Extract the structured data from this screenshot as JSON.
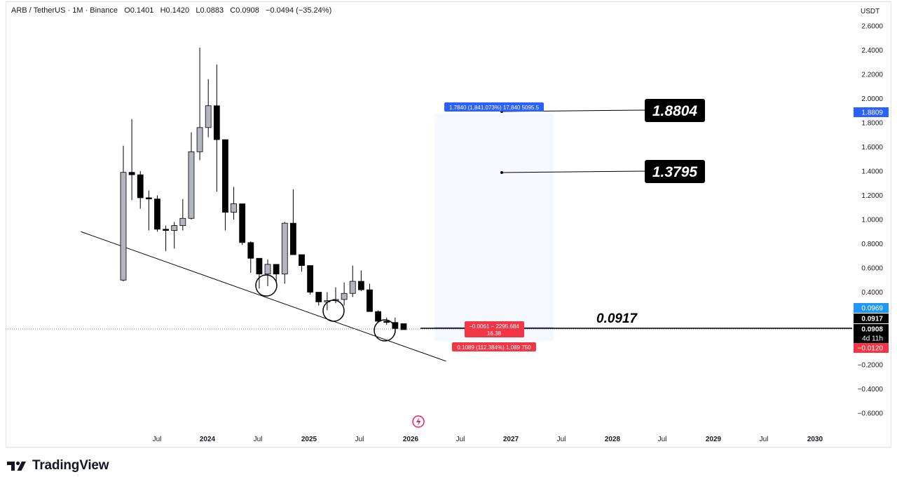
{
  "header": {
    "symbol": "ARB / TetherUS · 1M · Binance",
    "open": "O0.1401",
    "high": "H0.1420",
    "low": "L0.0883",
    "close": "C0.0908",
    "change": "−0.0494 (−35.24%)"
  },
  "price_axis": {
    "unit": "USDT",
    "ticks": [
      "2.6000",
      "2.4000",
      "2.2000",
      "2.0000",
      "1.8000",
      "1.6000",
      "1.4000",
      "1.2000",
      "1.0000",
      "0.8000",
      "0.6000",
      "0.4000",
      "0.2000",
      "−0.2000",
      "−0.4000",
      "−0.6000"
    ],
    "tick_values": [
      2.6,
      2.4,
      2.2,
      2.0,
      1.8,
      1.6,
      1.4,
      1.2,
      1.0,
      0.8,
      0.6,
      0.4,
      0.2,
      -0.2,
      -0.4,
      -0.6
    ],
    "badges": [
      {
        "text": "1.8809",
        "value": 1.8809,
        "color": "#2962ff"
      },
      {
        "text": "0.0969",
        "value": 0.0969,
        "color": "#2196f3"
      },
      {
        "text": "0.0917",
        "value": 0.0917,
        "color": "#000000"
      },
      {
        "text": "0.0908",
        "value": 0.0908,
        "color": "#000000"
      },
      {
        "text": "4d 11h",
        "value": 0.0908,
        "color": "#000000"
      },
      {
        "text": "−0.0120",
        "value": -0.012,
        "color": "#f23645"
      }
    ]
  },
  "time_axis": {
    "labels": [
      "Jul",
      "2024",
      "Jul",
      "2025",
      "Jul",
      "2026",
      "Jul",
      "2027",
      "Jul",
      "2028",
      "Jul",
      "2029",
      "Jul",
      "2030"
    ],
    "bold": [
      false,
      true,
      false,
      true,
      false,
      true,
      false,
      true,
      false,
      true,
      false,
      true,
      false,
      true
    ]
  },
  "annotations": {
    "target_high": "1.8804",
    "target_mid": "1.3795",
    "current_level": "0.0917",
    "measure_up": "1.7840 (1,841.073%) 17,840 5095.5",
    "measure_mid_1": "−0.0061 − 2295.684",
    "measure_mid_2": "16.38",
    "measure_down": "0.1089 (112.384%) 1,089 750"
  },
  "chart_data": {
    "type": "candlestick",
    "title": "ARB / TetherUS · 1M · Binance",
    "ylabel": "USDT",
    "ylim": [
      -0.7,
      2.7
    ],
    "candles": [
      {
        "open": 0.5,
        "high": 1.61,
        "low": 0.49,
        "close": 1.39
      },
      {
        "open": 1.39,
        "high": 1.83,
        "low": 1.16,
        "close": 1.37
      },
      {
        "open": 1.37,
        "high": 1.4,
        "low": 1.09,
        "close": 1.18
      },
      {
        "open": 1.18,
        "high": 1.24,
        "low": 0.91,
        "close": 1.17
      },
      {
        "open": 1.17,
        "high": 1.2,
        "low": 0.9,
        "close": 0.92
      },
      {
        "open": 0.92,
        "high": 0.95,
        "low": 0.74,
        "close": 0.91
      },
      {
        "open": 0.91,
        "high": 0.98,
        "low": 0.76,
        "close": 0.95
      },
      {
        "open": 0.95,
        "high": 1.17,
        "low": 0.91,
        "close": 1.01
      },
      {
        "open": 1.01,
        "high": 1.72,
        "low": 1.0,
        "close": 1.56
      },
      {
        "open": 1.56,
        "high": 2.42,
        "low": 1.49,
        "close": 1.76
      },
      {
        "open": 1.76,
        "high": 2.16,
        "low": 1.68,
        "close": 1.94
      },
      {
        "open": 1.94,
        "high": 2.28,
        "low": 1.23,
        "close": 1.66
      },
      {
        "open": 1.66,
        "high": 1.66,
        "low": 0.91,
        "close": 1.06
      },
      {
        "open": 1.06,
        "high": 1.27,
        "low": 1.0,
        "close": 1.13
      },
      {
        "open": 1.13,
        "high": 1.13,
        "low": 0.79,
        "close": 0.81
      },
      {
        "open": 0.81,
        "high": 0.82,
        "low": 0.56,
        "close": 0.68
      },
      {
        "open": 0.68,
        "high": 0.68,
        "low": 0.43,
        "close": 0.55
      },
      {
        "open": 0.55,
        "high": 0.67,
        "low": 0.45,
        "close": 0.63
      },
      {
        "open": 0.63,
        "high": 0.63,
        "low": 0.48,
        "close": 0.55
      },
      {
        "open": 0.55,
        "high": 0.98,
        "low": 0.47,
        "close": 0.97
      },
      {
        "open": 0.97,
        "high": 1.25,
        "low": 0.71,
        "close": 0.71
      },
      {
        "open": 0.71,
        "high": 0.71,
        "low": 0.57,
        "close": 0.62
      },
      {
        "open": 0.62,
        "high": 0.62,
        "low": 0.38,
        "close": 0.4
      },
      {
        "open": 0.4,
        "high": 0.4,
        "low": 0.29,
        "close": 0.32
      },
      {
        "open": 0.32,
        "high": 0.4,
        "low": 0.25,
        "close": 0.33
      },
      {
        "open": 0.33,
        "high": 0.44,
        "low": 0.31,
        "close": 0.34
      },
      {
        "open": 0.34,
        "high": 0.48,
        "low": 0.29,
        "close": 0.39
      },
      {
        "open": 0.39,
        "high": 0.62,
        "low": 0.36,
        "close": 0.49
      },
      {
        "open": 0.49,
        "high": 0.58,
        "low": 0.41,
        "close": 0.42
      },
      {
        "open": 0.42,
        "high": 0.47,
        "low": 0.24,
        "close": 0.24
      },
      {
        "open": 0.24,
        "high": 0.25,
        "low": 0.15,
        "close": 0.16
      },
      {
        "open": 0.16,
        "high": 0.19,
        "low": 0.13,
        "close": 0.15
      },
      {
        "open": 0.15,
        "high": 0.19,
        "low": 0.09,
        "close": 0.1
      },
      {
        "open": 0.1401,
        "high": 0.142,
        "low": 0.0883,
        "close": 0.0908
      }
    ],
    "up_color": "#b2b5be",
    "down_color": "#000000",
    "trendline": [
      {
        "index": -5,
        "value": 0.9
      },
      {
        "index": 38,
        "value": -0.17
      }
    ],
    "levels": [
      1.8804,
      1.3795,
      0.0917
    ],
    "grid": false
  },
  "colors": {
    "accent_blue": "#2962ff",
    "down_red": "#f23645",
    "measure_fill": "#f5f8ff"
  }
}
